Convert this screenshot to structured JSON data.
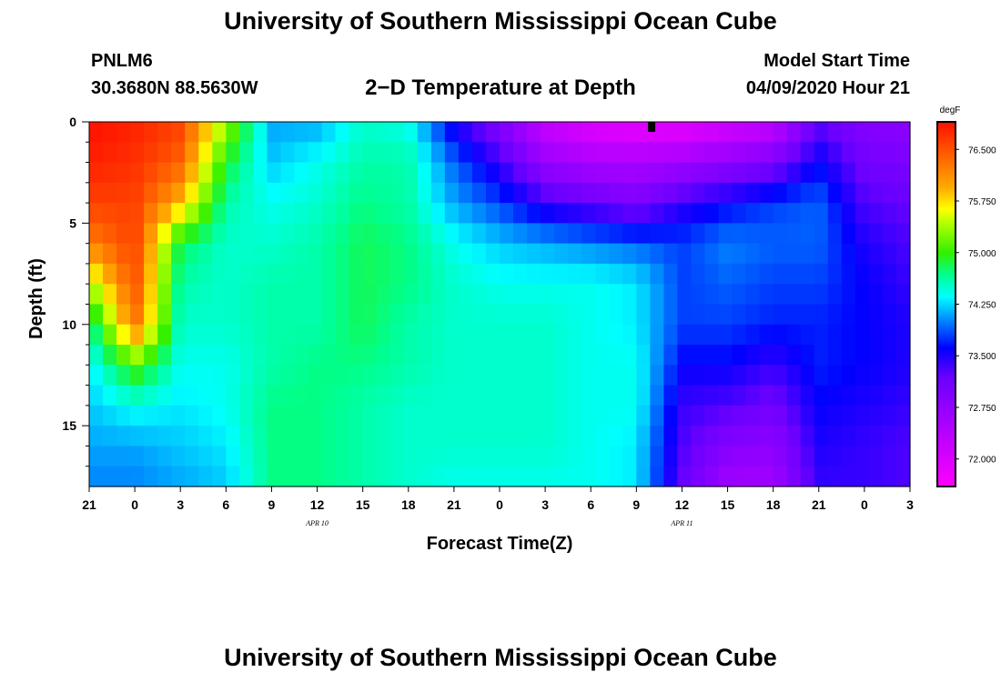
{
  "header": {
    "title": "University of Southern Mississippi Ocean Cube",
    "station_id": "PNLM6",
    "station_coords": "30.3680N 88.5630W",
    "subtitle": "2−D Temperature at Depth",
    "start_label": "Model Start Time",
    "start_value": "04/09/2020 Hour 21"
  },
  "footer": {
    "title": "University of Southern Mississippi Ocean Cube"
  },
  "chart_data": {
    "type": "heatmap",
    "title": "2−D Temperature at Depth",
    "xlabel": "Forecast Time(Z)",
    "ylabel": "Depth (ft)",
    "units": "degF",
    "x_hours": [
      0,
      3,
      6,
      9,
      12,
      15,
      18,
      21,
      24,
      27,
      30,
      33,
      36,
      39,
      42,
      45,
      48,
      51,
      54
    ],
    "x_tick_labels": [
      "21",
      "0",
      "3",
      "6",
      "9",
      "12",
      "15",
      "18",
      "21",
      "0",
      "3",
      "6",
      "9",
      "12",
      "15",
      "18",
      "21",
      "0",
      "3"
    ],
    "date_labels": [
      {
        "hour": 15,
        "text": "APR  10"
      },
      {
        "hour": 39,
        "text": "APR  11"
      }
    ],
    "xlim": [
      0,
      54
    ],
    "y_ticks": [
      0,
      5,
      10,
      15
    ],
    "ylim": [
      0,
      18
    ],
    "y_minor_ticks": [
      1,
      2,
      3,
      4,
      6,
      7,
      8,
      9,
      11,
      12,
      13,
      14,
      16,
      17
    ],
    "colorbar_ticks": [
      72.0,
      72.75,
      73.5,
      74.25,
      75.0,
      75.75,
      76.5
    ],
    "colorbar_tick_labels": [
      "72.000",
      "72.750",
      "73.500",
      "74.250",
      "75.000",
      "75.750",
      "76.500"
    ],
    "value_range": [
      71.6,
      76.9
    ],
    "marker": {
      "hour": 37,
      "depth": 0.2
    },
    "grid": false,
    "depths_ft": [
      0,
      2,
      4,
      6,
      8,
      10,
      12,
      14,
      16,
      18
    ],
    "temperature_by_hour": [
      {
        "hour": 0,
        "values": [
          76.9,
          76.8,
          76.6,
          76.2,
          75.4,
          74.6,
          74.3,
          74.2,
          74.1,
          74.0
        ]
      },
      {
        "hour": 3,
        "values": [
          76.8,
          76.7,
          76.6,
          76.6,
          76.5,
          76.3,
          75.1,
          74.4,
          74.1,
          74.0
        ]
      },
      {
        "hour": 6,
        "values": [
          76.6,
          76.4,
          75.9,
          74.8,
          74.6,
          74.5,
          74.4,
          74.3,
          74.2,
          74.1
        ]
      },
      {
        "hour": 9,
        "values": [
          75.4,
          74.9,
          74.6,
          74.5,
          74.5,
          74.5,
          74.4,
          74.4,
          74.3,
          74.2
        ]
      },
      {
        "hour": 12,
        "values": [
          74.1,
          74.2,
          74.4,
          74.5,
          74.6,
          74.6,
          74.6,
          74.7,
          74.7,
          74.7
        ]
      },
      {
        "hour": 15,
        "values": [
          74.1,
          74.4,
          74.5,
          74.6,
          74.6,
          74.6,
          74.7,
          74.7,
          74.7,
          74.7
        ]
      },
      {
        "hour": 18,
        "values": [
          74.5,
          74.6,
          74.7,
          74.8,
          74.8,
          74.8,
          74.7,
          74.6,
          74.6,
          74.6
        ]
      },
      {
        "hour": 21,
        "values": [
          74.4,
          74.6,
          74.6,
          74.7,
          74.7,
          74.6,
          74.6,
          74.5,
          74.5,
          74.5
        ]
      },
      {
        "hour": 24,
        "values": [
          73.5,
          73.9,
          74.1,
          74.4,
          74.5,
          74.5,
          74.5,
          74.5,
          74.5,
          74.4
        ]
      },
      {
        "hour": 27,
        "values": [
          72.9,
          73.4,
          73.8,
          74.2,
          74.4,
          74.5,
          74.5,
          74.5,
          74.5,
          74.4
        ]
      },
      {
        "hour": 30,
        "values": [
          72.2,
          72.7,
          73.4,
          74.1,
          74.4,
          74.5,
          74.5,
          74.5,
          74.5,
          74.4
        ]
      },
      {
        "hour": 33,
        "values": [
          71.9,
          72.5,
          73.2,
          74.0,
          74.4,
          74.4,
          74.4,
          74.4,
          74.4,
          74.4
        ]
      },
      {
        "hour": 36,
        "values": [
          71.8,
          72.5,
          73.0,
          73.9,
          74.3,
          74.3,
          74.4,
          74.4,
          74.3,
          74.3
        ]
      },
      {
        "hour": 39,
        "values": [
          71.8,
          72.6,
          73.4,
          73.8,
          73.8,
          73.8,
          73.6,
          73.4,
          73.3,
          73.2
        ]
      },
      {
        "hour": 42,
        "values": [
          72.0,
          72.8,
          73.6,
          74.0,
          73.9,
          73.8,
          73.6,
          73.3,
          72.9,
          72.6
        ]
      },
      {
        "hour": 45,
        "values": [
          72.2,
          73.0,
          73.8,
          73.9,
          73.8,
          73.7,
          73.4,
          73.1,
          72.8,
          72.6
        ]
      },
      {
        "hour": 48,
        "values": [
          73.2,
          73.6,
          73.9,
          73.9,
          73.8,
          73.7,
          73.7,
          73.6,
          73.5,
          73.4
        ]
      },
      {
        "hour": 51,
        "values": [
          72.9,
          73.1,
          73.3,
          73.5,
          73.6,
          73.6,
          73.6,
          73.5,
          73.4,
          73.4
        ]
      },
      {
        "hour": 54,
        "values": [
          72.8,
          73.0,
          73.2,
          73.3,
          73.4,
          73.5,
          73.5,
          73.4,
          73.3,
          73.3
        ]
      }
    ]
  }
}
